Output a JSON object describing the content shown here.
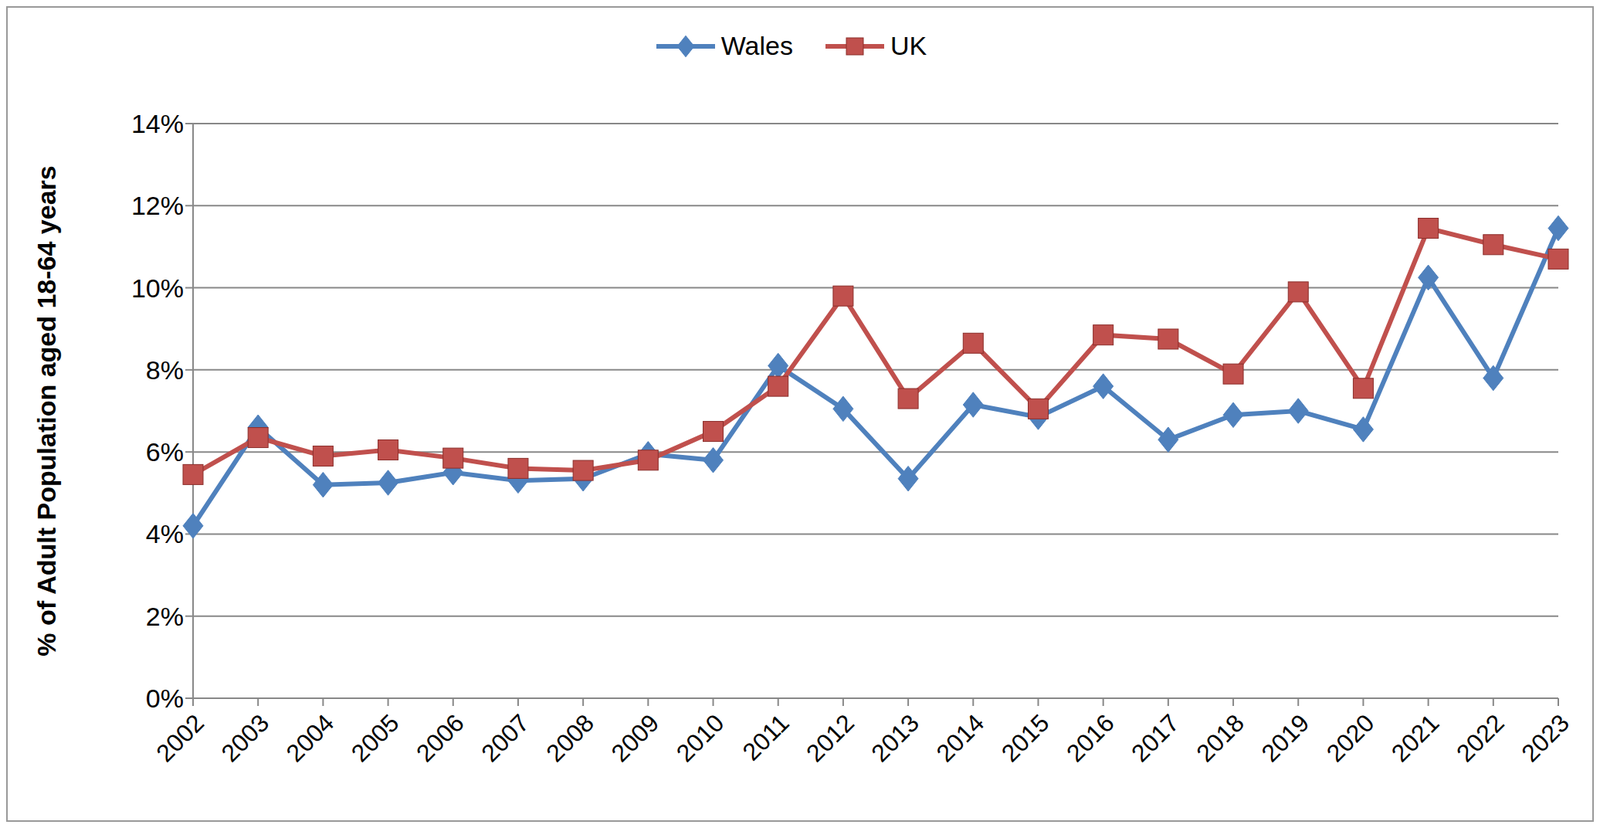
{
  "chart_data": {
    "type": "line",
    "y_label": "% of Adult Population aged 18-64 years",
    "categories": [
      "2002",
      "2003",
      "2004",
      "2005",
      "2006",
      "2007",
      "2008",
      "2009",
      "2010",
      "2011",
      "2012",
      "2013",
      "2014",
      "2015",
      "2016",
      "2017",
      "2018",
      "2019",
      "2020",
      "2021",
      "2022",
      "2023"
    ],
    "series": [
      {
        "name": "Wales",
        "color": "#4F81BD",
        "marker": "diamond",
        "values": [
          4.2,
          6.6,
          5.2,
          5.25,
          5.5,
          5.3,
          5.35,
          5.95,
          5.8,
          8.1,
          7.05,
          5.35,
          7.15,
          6.85,
          7.6,
          6.3,
          6.9,
          7.0,
          6.55,
          10.25,
          7.8,
          11.45
        ]
      },
      {
        "name": "UK",
        "color": "#C0504D",
        "marker": "square",
        "values": [
          5.45,
          6.35,
          5.9,
          6.05,
          5.85,
          5.6,
          5.55,
          5.8,
          6.5,
          7.6,
          9.8,
          7.3,
          8.65,
          7.05,
          8.85,
          8.75,
          7.9,
          9.9,
          7.55,
          11.45,
          11.05,
          10.7
        ]
      }
    ],
    "ylim": [
      0,
      14
    ],
    "yticks": [
      {
        "value": 0,
        "label": "0%"
      },
      {
        "value": 2,
        "label": "2%"
      },
      {
        "value": 4,
        "label": "4%"
      },
      {
        "value": 6,
        "label": "6%"
      },
      {
        "value": 8,
        "label": "8%"
      },
      {
        "value": 10,
        "label": "10%"
      },
      {
        "value": 12,
        "label": "12%"
      },
      {
        "value": 14,
        "label": "14%"
      }
    ],
    "grid": true,
    "legend": "top"
  }
}
